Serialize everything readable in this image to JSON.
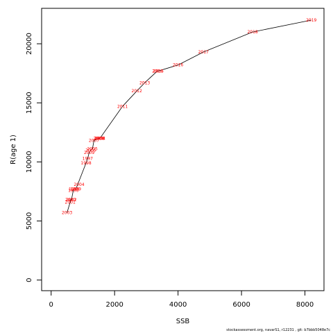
{
  "chart_data": {
    "type": "line",
    "title": "",
    "xlabel": "SSB",
    "ylabel": "R(age 1)",
    "xlim": [
      -300,
      8600
    ],
    "ylim": [
      -900,
      23000
    ],
    "xticks": [
      0,
      2000,
      4000,
      6000,
      8000
    ],
    "yticks": [
      0,
      5000,
      10000,
      15000,
      20000
    ],
    "grid": false,
    "line_color": "#000000",
    "label_color": "#ff0000",
    "x": [
      500,
      600,
      610,
      640,
      700,
      720,
      780,
      1100,
      1150,
      1200,
      1250,
      1300,
      1350,
      1500,
      1520,
      1540,
      2250,
      2700,
      2950,
      3350,
      3380,
      4000,
      4800,
      6350,
      8200
    ],
    "y": [
      5700,
      6600,
      6800,
      6800,
      7600,
      7700,
      7700,
      9900,
      10300,
      10800,
      11000,
      11100,
      11800,
      12000,
      12000,
      12000,
      14700,
      16000,
      16700,
      17700,
      17700,
      18200,
      19300,
      21000,
      22000
    ],
    "labels": [
      "2003",
      "2001",
      "2000",
      "2002",
      "1996",
      "1995",
      "1999",
      "1998",
      "1997",
      "2009",
      "2006",
      "2005",
      "2007",
      "2010",
      "2008",
      "2004",
      "2011",
      "2012",
      "2013",
      "2014",
      "2015",
      "2016",
      "2017",
      "2018",
      "2019"
    ],
    "annotations": [
      {
        "text": "2004"
      }
    ]
  },
  "footer": {
    "caption": "stockassessment.org, navarS1, r12231 , git: b7bbb5048e7c"
  }
}
